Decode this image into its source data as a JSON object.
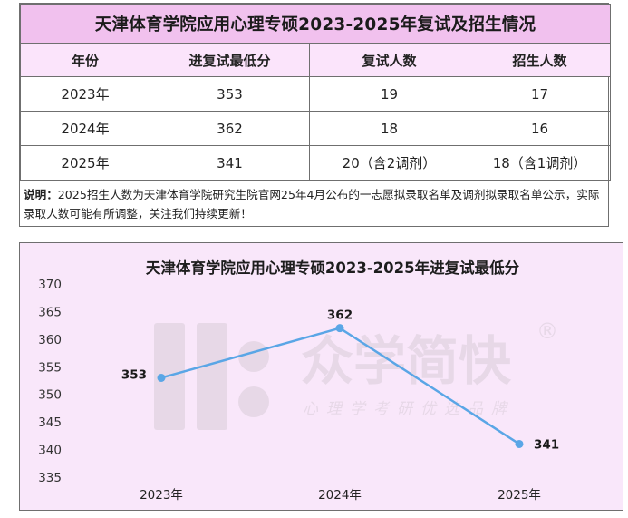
{
  "table": {
    "title": "天津体育学院应用心理专硕2023-2025年复试及招生情况",
    "headers": [
      "年份",
      "进复试最低分",
      "复试人数",
      "招生人数"
    ],
    "rows": [
      [
        "2023年",
        "353",
        "19",
        "17"
      ],
      [
        "2024年",
        "362",
        "18",
        "16"
      ],
      [
        "2025年",
        "341",
        "20（含2调剂）",
        "18（含1调剂）"
      ]
    ],
    "note_label": "说明：",
    "note_text": "2025招生人数为天津体育学院研究生院官网25年4月公布的一志愿拟录取名单及调剂拟录取名单公示，实际录取人数可能有所调整，关注我们持续更新！"
  },
  "watermark": {
    "brand": "众学简快",
    "slogan": "心理学考研优选品牌",
    "registered_mark": "®"
  },
  "chart_data": {
    "type": "line",
    "title": "天津体育学院应用心理专硕2023-2025年进复试最低分",
    "categories": [
      "2023年",
      "2024年",
      "2025年"
    ],
    "series": [
      {
        "values": [
          353,
          362,
          341
        ],
        "data_labels": [
          "353",
          "362",
          "341"
        ],
        "color": "#5aa6e6"
      }
    ],
    "ylim": [
      335,
      370
    ],
    "yticks": [
      "335",
      "340",
      "345",
      "350",
      "355",
      "360",
      "365",
      "370"
    ],
    "xlabel": "",
    "ylabel": "",
    "grid": false,
    "legend": "none"
  },
  "colors": {
    "title_bg": "#f1c1ee",
    "header_bg": "#fbe4fb",
    "chart_bg": "#f9e7fa",
    "line": "#5aa6e6"
  }
}
